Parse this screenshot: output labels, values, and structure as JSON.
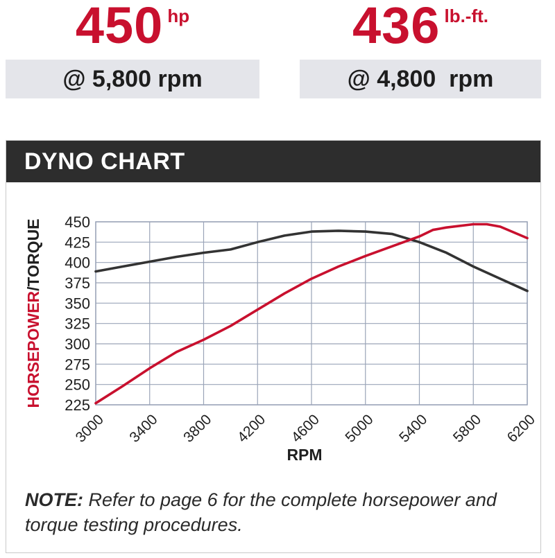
{
  "stats": {
    "horsepower": {
      "value": "450",
      "unit": "hp",
      "rpm": "@ 5,800 rpm"
    },
    "torque": {
      "value": "436",
      "unit": "lb.-ft.",
      "rpm": "@ 4,800  rpm"
    }
  },
  "chart_title": "DYNO CHART",
  "note": {
    "lead": "NOTE:",
    "text": " Refer to page 6 for the complete horsepower and torque testing procedures."
  },
  "colors": {
    "brand_red": "#c8102e",
    "torque_line": "#333333",
    "header_bg": "#2d2d2d",
    "stat_bar_bg": "#e4e5ea"
  },
  "chart_data": {
    "type": "line",
    "xlabel": "RPM",
    "ylabel_parts": [
      "HORSEPOWER",
      "/TORQUE"
    ],
    "xlim": [
      3000,
      6200
    ],
    "ylim": [
      225,
      450
    ],
    "x_ticks": [
      3000,
      3400,
      3800,
      4200,
      4600,
      5000,
      5400,
      5800,
      6200
    ],
    "y_ticks": [
      225,
      250,
      275,
      300,
      325,
      350,
      375,
      400,
      425,
      450
    ],
    "grid": true,
    "series": [
      {
        "key": "horsepower",
        "color": "#c8102e",
        "x": [
          3000,
          3200,
          3400,
          3600,
          3800,
          4000,
          4200,
          4400,
          4600,
          4800,
          5000,
          5200,
          5400,
          5500,
          5600,
          5800,
          5900,
          6000,
          6200
        ],
        "y": [
          227,
          248,
          270,
          290,
          305,
          322,
          342,
          362,
          380,
          395,
          408,
          420,
          432,
          440,
          443,
          447,
          447,
          444,
          430
        ]
      },
      {
        "key": "torque",
        "color": "#333333",
        "x": [
          3000,
          3200,
          3400,
          3600,
          3800,
          4000,
          4200,
          4400,
          4600,
          4800,
          5000,
          5200,
          5400,
          5600,
          5800,
          6000,
          6200
        ],
        "y": [
          389,
          395,
          401,
          407,
          412,
          416,
          425,
          433,
          438,
          439,
          438,
          435,
          425,
          412,
          395,
          380,
          365
        ]
      }
    ]
  }
}
